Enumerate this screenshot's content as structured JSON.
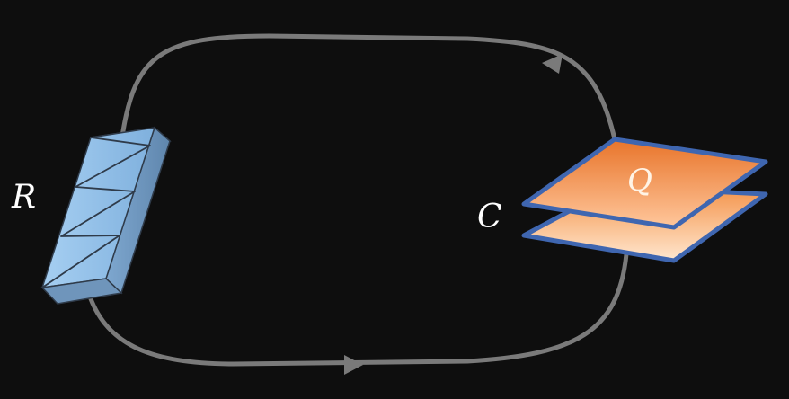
{
  "diagram": {
    "type": "rc-circuit",
    "background_color": "#0e0e0e",
    "wire_color": "#7a7a7a",
    "labels": {
      "resistor": "R",
      "capacitor": "C",
      "charge": "Q"
    },
    "colors": {
      "label_text": "#ffffff",
      "charge_text": "#fff4e6",
      "resistor_face": "#8fbde6",
      "resistor_side": "#6f95bb",
      "resistor_stroke": "#2f3b4a",
      "plate_top": "#e8742a",
      "plate_bottom": "#ffe7cf",
      "plate_border": "#3f66b0"
    },
    "components": [
      {
        "name": "resistor",
        "icon": "zigzag-resistor-icon"
      },
      {
        "name": "capacitor",
        "icon": "parallel-plate-capacitor-icon"
      }
    ],
    "current_direction": "clockwise"
  }
}
